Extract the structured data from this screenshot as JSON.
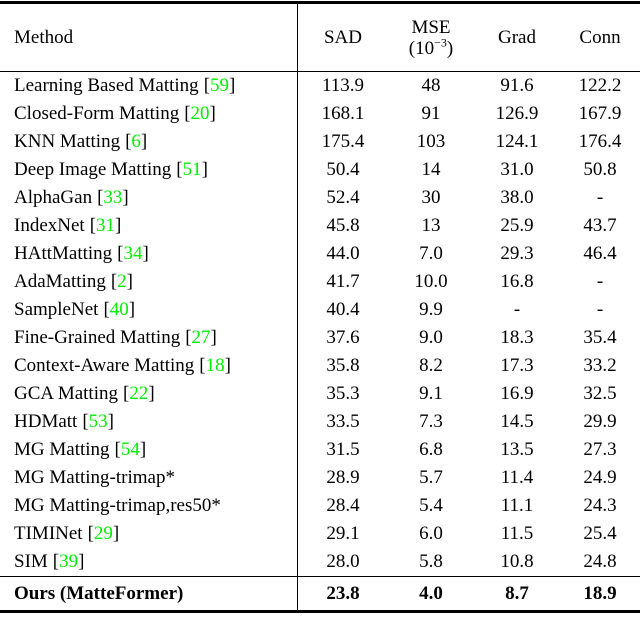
{
  "colors": {
    "citation_green": "#00ee00",
    "text": "#000000",
    "background": "#ffffff"
  },
  "table": {
    "headers": {
      "method": "Method",
      "sad": "SAD",
      "mse": "MSE",
      "mse_unit_pre": "(10",
      "mse_unit_sup": "−3",
      "mse_unit_post": ")",
      "grad": "Grad",
      "conn": "Conn"
    },
    "bracket_open": "[",
    "bracket_close": "]",
    "rows": [
      {
        "method": "Learning Based Matting",
        "cite": "59",
        "sad": "113.9",
        "mse": "48",
        "grad": "91.6",
        "conn": "122.2"
      },
      {
        "method": "Closed-Form Matting",
        "cite": "20",
        "sad": "168.1",
        "mse": "91",
        "grad": "126.9",
        "conn": "167.9"
      },
      {
        "method": "KNN Matting",
        "cite": "6",
        "sad": "175.4",
        "mse": "103",
        "grad": "124.1",
        "conn": "176.4"
      },
      {
        "method": "Deep Image Matting",
        "cite": "51",
        "sad": "50.4",
        "mse": "14",
        "grad": "31.0",
        "conn": "50.8"
      },
      {
        "method": "AlphaGan",
        "cite": "33",
        "sad": "52.4",
        "mse": "30",
        "grad": "38.0",
        "conn": "-"
      },
      {
        "method": "IndexNet",
        "cite": "31",
        "sad": "45.8",
        "mse": "13",
        "grad": "25.9",
        "conn": "43.7"
      },
      {
        "method": "HAttMatting",
        "cite": "34",
        "sad": "44.0",
        "mse": "7.0",
        "grad": "29.3",
        "conn": "46.4"
      },
      {
        "method": "AdaMatting",
        "cite": "2",
        "sad": "41.7",
        "mse": "10.0",
        "grad": "16.8",
        "conn": "-"
      },
      {
        "method": "SampleNet",
        "cite": "40",
        "sad": "40.4",
        "mse": "9.9",
        "grad": "-",
        "conn": "-"
      },
      {
        "method": "Fine-Grained Matting",
        "cite": "27",
        "sad": "37.6",
        "mse": "9.0",
        "grad": "18.3",
        "conn": "35.4"
      },
      {
        "method": "Context-Aware Matting",
        "cite": "18",
        "sad": "35.8",
        "mse": "8.2",
        "grad": "17.3",
        "conn": "33.2"
      },
      {
        "method": "GCA Matting",
        "cite": "22",
        "sad": "35.3",
        "mse": "9.1",
        "grad": "16.9",
        "conn": "32.5"
      },
      {
        "method": "HDMatt",
        "cite": "53",
        "sad": "33.5",
        "mse": "7.3",
        "grad": "14.5",
        "conn": "29.9"
      },
      {
        "method": "MG Matting",
        "cite": "54",
        "sad": "31.5",
        "mse": "6.8",
        "grad": "13.5",
        "conn": "27.3"
      },
      {
        "method": "MG Matting-trimap*",
        "cite": "",
        "sad": "28.9",
        "mse": "5.7",
        "grad": "11.4",
        "conn": "24.9"
      },
      {
        "method": "MG Matting-trimap,res50*",
        "cite": "",
        "sad": "28.4",
        "mse": "5.4",
        "grad": "11.1",
        "conn": "24.3"
      },
      {
        "method": "TIMINet",
        "cite": "29",
        "sad": "29.1",
        "mse": "6.0",
        "grad": "11.5",
        "conn": "25.4"
      },
      {
        "method": "SIM",
        "cite": "39",
        "sad": "28.0",
        "mse": "5.8",
        "grad": "10.8",
        "conn": "24.8"
      }
    ],
    "ours_row": {
      "method": "Ours (MatteFormer)",
      "sad": "23.8",
      "mse": "4.0",
      "grad": "8.7",
      "conn": "18.9"
    }
  }
}
